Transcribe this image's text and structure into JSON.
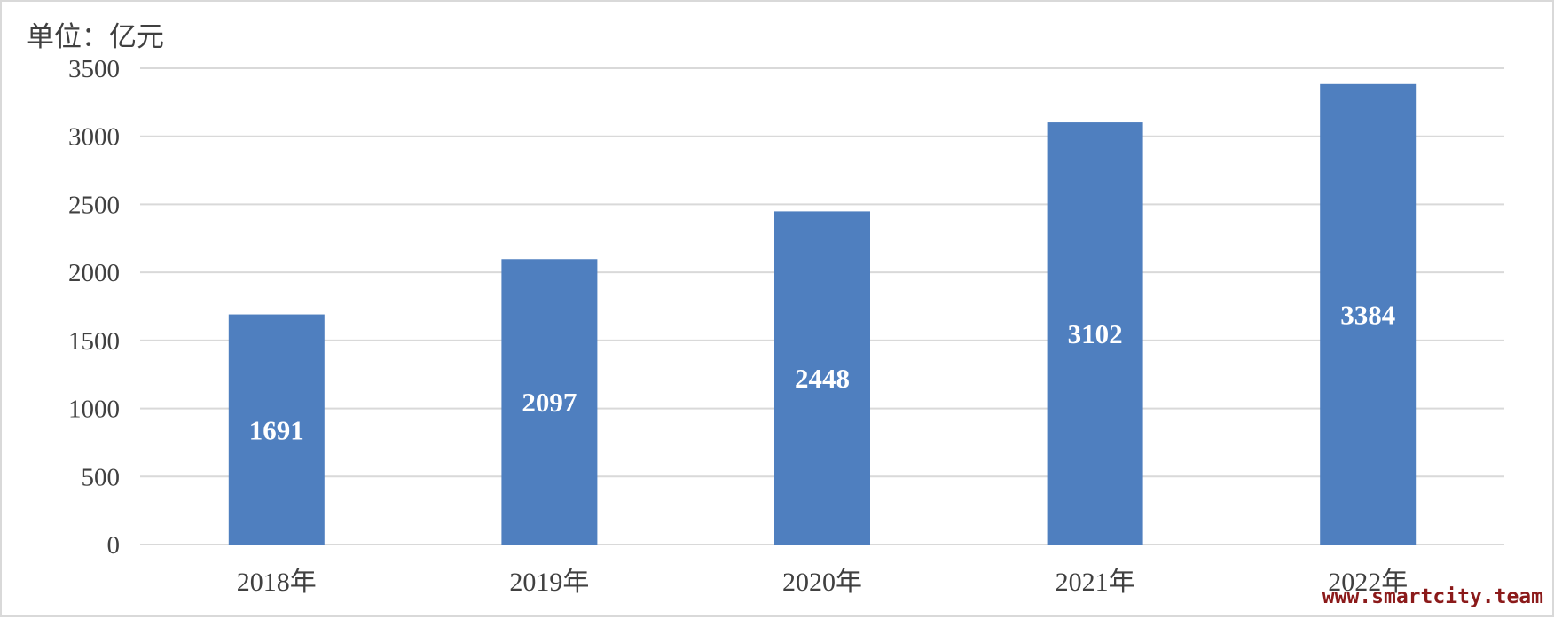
{
  "unit_label": "单位：亿元",
  "watermark": "www.smartcity.team",
  "colors": {
    "bar": "#4f7fbf",
    "grid": "#d9d9d9",
    "text": "#404040",
    "data_label": "#ffffff",
    "watermark": "#8b1a1a"
  },
  "chart_data": {
    "type": "bar",
    "categories": [
      "2018年",
      "2019年",
      "2020年",
      "2021年",
      "2022年"
    ],
    "values": [
      1691,
      2097,
      2448,
      3102,
      3384
    ],
    "data_labels": [
      "1691",
      "2097",
      "2448",
      "3102",
      "3384"
    ],
    "title": "",
    "xlabel": "",
    "ylabel": "单位：亿元",
    "ylim": [
      0,
      3500
    ],
    "yticks": [
      0,
      500,
      1000,
      1500,
      2000,
      2500,
      3000,
      3500
    ],
    "grid": true,
    "legend": "none"
  }
}
